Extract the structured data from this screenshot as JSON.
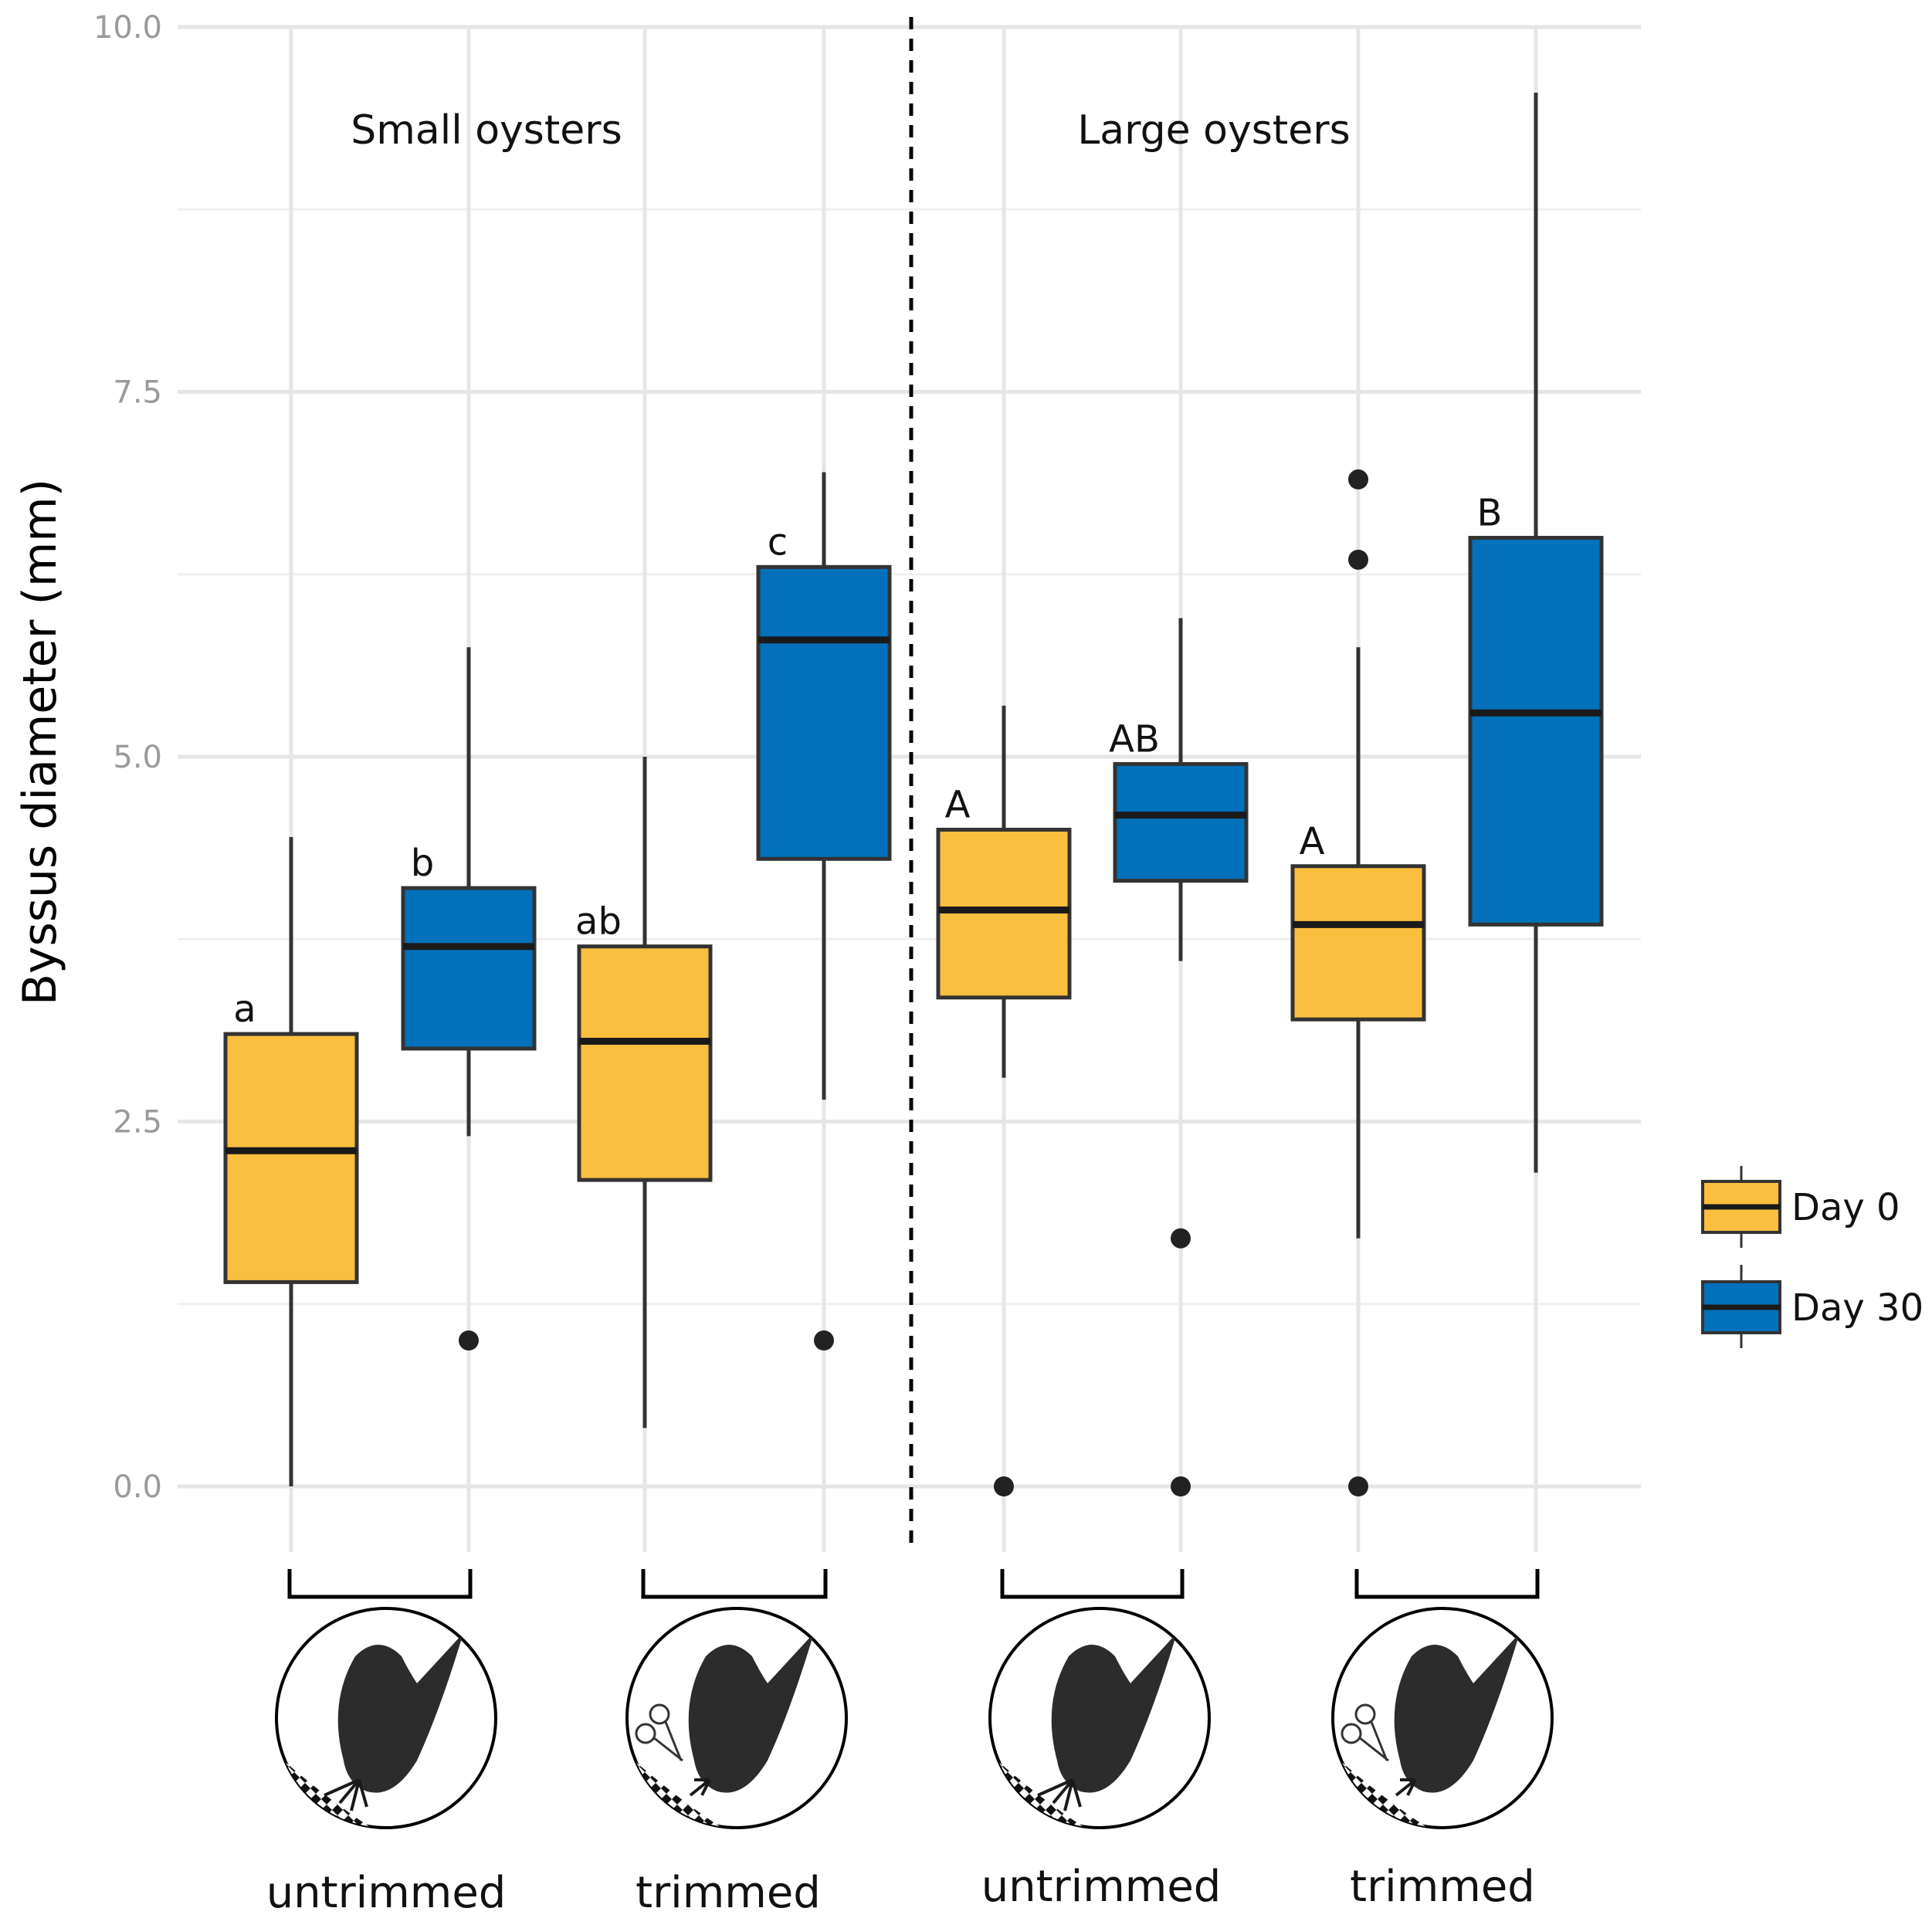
{
  "chart_data": {
    "type": "box",
    "ylabel": "Byssus diameter (mm)",
    "ylim": [
      -0.5,
      10.0
    ],
    "yticks": [
      0.0,
      2.5,
      5.0,
      7.5,
      10.0
    ],
    "ytick_labels": [
      "0.0",
      "2.5",
      "5.0",
      "7.5",
      "10.0"
    ],
    "grid": true,
    "panels": [
      {
        "title": "Small oysters",
        "position": "left"
      },
      {
        "title": "Large oysters",
        "position": "right"
      }
    ],
    "groups": [
      {
        "label": "untrimmed",
        "panel": "Small oysters"
      },
      {
        "label": "trimmed",
        "panel": "Small oysters"
      },
      {
        "label": "untrimmed",
        "panel": "Large oysters"
      },
      {
        "label": "trimmed",
        "panel": "Large oysters"
      }
    ],
    "legend": {
      "placement": "right",
      "entries": [
        {
          "name": "Day 0",
          "color": "#fbbf3f"
        },
        {
          "name": "Day 30",
          "color": "#0171bb"
        }
      ]
    },
    "series": [
      {
        "name": "Day 0",
        "group": 0,
        "whisker_low": 0.0,
        "q1": 1.4,
        "median": 2.3,
        "q3": 3.1,
        "whisker_high": 4.45,
        "outliers": [],
        "letter": "a"
      },
      {
        "name": "Day 30",
        "group": 0,
        "whisker_low": 2.4,
        "q1": 3.0,
        "median": 3.7,
        "q3": 4.1,
        "whisker_high": 5.75,
        "outliers": [
          1.0
        ],
        "letter": "b"
      },
      {
        "name": "Day 0",
        "group": 1,
        "whisker_low": 0.4,
        "q1": 2.1,
        "median": 3.05,
        "q3": 3.7,
        "whisker_high": 5.0,
        "outliers": [],
        "letter": "ab"
      },
      {
        "name": "Day 30",
        "group": 1,
        "whisker_low": 2.65,
        "q1": 4.3,
        "median": 5.8,
        "q3": 6.3,
        "whisker_high": 6.95,
        "outliers": [
          1.0
        ],
        "letter": "c"
      },
      {
        "name": "Day 0",
        "group": 2,
        "whisker_low": 2.8,
        "q1": 3.35,
        "median": 3.95,
        "q3": 4.5,
        "whisker_high": 5.35,
        "outliers": [
          0.0
        ],
        "letter": "A"
      },
      {
        "name": "Day 30",
        "group": 2,
        "whisker_low": 3.6,
        "q1": 4.15,
        "median": 4.6,
        "q3": 4.95,
        "whisker_high": 5.95,
        "outliers": [
          1.7,
          0.0
        ],
        "letter": "AB"
      },
      {
        "name": "Day 0",
        "group": 3,
        "whisker_low": 1.7,
        "q1": 3.2,
        "median": 3.85,
        "q3": 4.25,
        "whisker_high": 5.75,
        "outliers": [
          6.9,
          6.35,
          0.0
        ],
        "letter": "A"
      },
      {
        "name": "Day 30",
        "group": 3,
        "whisker_low": 2.15,
        "q1": 3.85,
        "median": 5.3,
        "q3": 6.5,
        "whisker_high": 9.55,
        "outliers": [],
        "letter": "B"
      }
    ]
  }
}
